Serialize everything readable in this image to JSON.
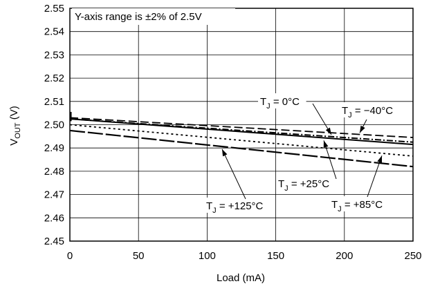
{
  "chart_data": {
    "type": "line",
    "title": "",
    "note": "Y-axis range is ±2% of 2.5V",
    "xlabel": "Load (mA)",
    "ylabel": {
      "main": "V",
      "sub": "OUT",
      "unit": "(V)"
    },
    "xlim": [
      0,
      250
    ],
    "ylim": [
      2.45,
      2.55
    ],
    "x_ticks": [
      "0",
      "50",
      "100",
      "150",
      "200",
      "250"
    ],
    "y_ticks": [
      "2.45",
      "2.46",
      "2.47",
      "2.48",
      "2.49",
      "2.50",
      "2.51",
      "2.52",
      "2.53",
      "2.54",
      "2.55"
    ],
    "grid": true,
    "series": [
      {
        "name": "T_J = −40°C",
        "label_main": "T",
        "label_sub": "J",
        "label_rest": " = −40°C",
        "style": "dash",
        "x": [
          0,
          250
        ],
        "y": [
          2.503,
          2.4945
        ]
      },
      {
        "name": "T_J = 0°C",
        "label_main": "T",
        "label_sub": "J",
        "label_rest": " = 0°C",
        "style": "dashdot",
        "x": [
          0,
          250
        ],
        "y": [
          2.5025,
          2.4925
        ]
      },
      {
        "name": "T_J = +25°C",
        "label_main": "T",
        "label_sub": "J",
        "label_rest": " = +25°C",
        "style": "solid",
        "x": [
          0,
          250
        ],
        "y": [
          2.5025,
          2.4915
        ]
      },
      {
        "name": "T_J = +85°C",
        "label_main": "T",
        "label_sub": "J",
        "label_rest": " = +85°C",
        "style": "dot",
        "x": [
          0,
          250
        ],
        "y": [
          2.5,
          2.4865
        ]
      },
      {
        "name": "T_J = +125°C",
        "label_main": "T",
        "label_sub": "J",
        "label_rest": " = +125°C",
        "style": "longdash",
        "x": [
          0,
          250
        ],
        "y": [
          2.4975,
          2.482
        ]
      }
    ]
  }
}
